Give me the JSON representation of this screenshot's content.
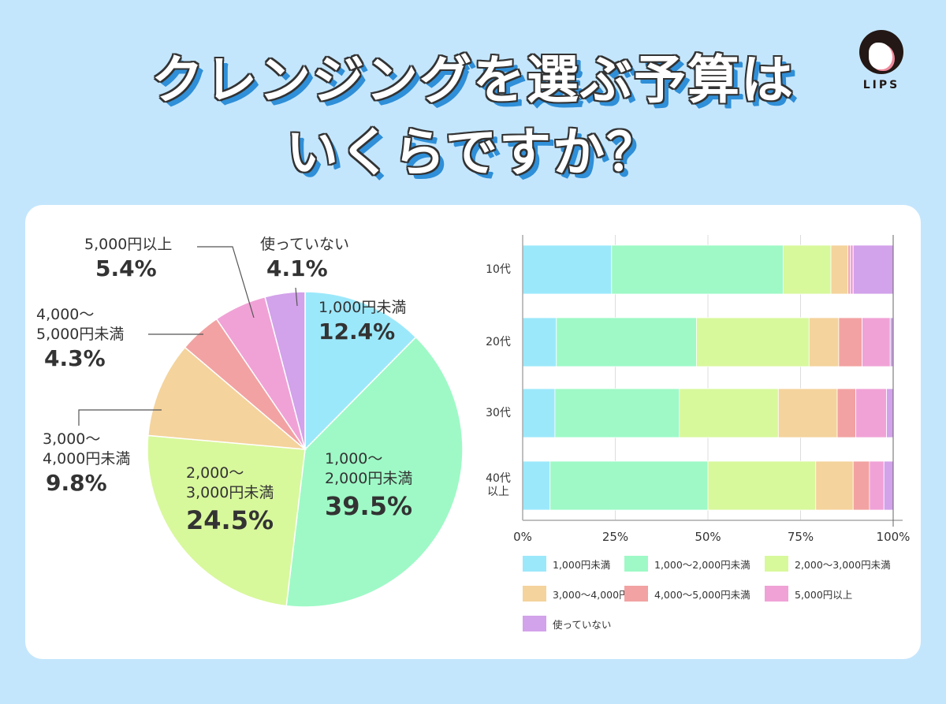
{
  "title": {
    "line1": "クレンジングを選ぶ予算は",
    "line2": "いくらですか？"
  },
  "logo": {
    "text": "LIPS"
  },
  "chart_data": [
    {
      "type": "pie",
      "order": "clockwise-from-top",
      "categories": [
        "1,000円未満",
        "1,000〜2,000円未満",
        "2,000〜3,000円未満",
        "3,000〜4,000円未満",
        "4,000〜5,000円未満",
        "5,000円以上",
        "使っていない"
      ],
      "values": [
        12.4,
        39.5,
        24.5,
        9.8,
        4.3,
        5.4,
        4.1
      ],
      "labels": [
        "12.4%",
        "39.5%",
        "24.5%",
        "9.8%",
        "4.3%",
        "5.4%",
        "4.1%"
      ],
      "colors": [
        "#9ce8fb",
        "#9ef9c6",
        "#d8f89c",
        "#f4d39c",
        "#f2a2a2",
        "#f0a2d6",
        "#d2a2ea"
      ]
    },
    {
      "type": "bar",
      "orientation": "horizontal",
      "stacked": "percent",
      "categories": [
        "10代",
        "20代",
        "30代",
        "40代以上"
      ],
      "category_lines": [
        [
          "10代"
        ],
        [
          "20代"
        ],
        [
          "30代"
        ],
        [
          "40代",
          "以上"
        ]
      ],
      "xticks": [
        "0%",
        "25%",
        "50%",
        "75%",
        "100%"
      ],
      "xlim": [
        0,
        100
      ],
      "grid": true,
      "legend": "bottom",
      "series": [
        {
          "name": "1,000円未満",
          "color": "#9ce8fb",
          "values": [
            24.0,
            9.1,
            8.7,
            7.4
          ]
        },
        {
          "name": "1,000〜2,000円未満",
          "color": "#9ef9c6",
          "values": [
            46.3,
            37.8,
            33.6,
            42.6
          ]
        },
        {
          "name": "2,000〜3,000円未満",
          "color": "#d8f89c",
          "values": [
            12.9,
            30.4,
            26.7,
            29.1
          ]
        },
        {
          "name": "3,000〜4,000円未満",
          "color": "#f4d39c",
          "values": [
            4.6,
            8.0,
            15.9,
            10.1
          ]
        },
        {
          "name": "4,000〜5,000円未満",
          "color": "#f2a2a2",
          "values": [
            0.6,
            6.3,
            5.0,
            4.4
          ]
        },
        {
          "name": "5,000円以上",
          "color": "#f0a2d6",
          "values": [
            0.8,
            7.6,
            8.3,
            3.9
          ]
        },
        {
          "name": "使っていない",
          "color": "#d2a2ea",
          "values": [
            10.8,
            0.8,
            1.8,
            2.5
          ]
        }
      ]
    }
  ],
  "pie_labels": [
    {
      "l1": "1,000円未満",
      "l2": ""
    },
    {
      "l1": "1,000〜",
      "l2": "2,000円未満"
    },
    {
      "l1": "2,000〜",
      "l2": "3,000円未満"
    },
    {
      "l1": "3,000〜",
      "l2": "4,000円未満"
    },
    {
      "l1": "4,000〜",
      "l2": "5,000円未満"
    },
    {
      "l1": "5,000円以上",
      "l2": ""
    },
    {
      "l1": "使っていない",
      "l2": ""
    }
  ]
}
